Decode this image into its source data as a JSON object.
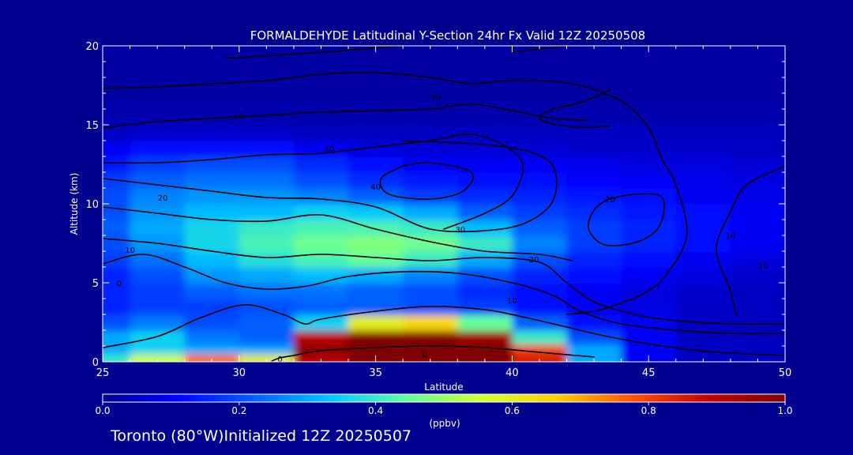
{
  "chart_data": {
    "type": "heatmap",
    "title": "FORMALDEHYDE Latitudinal Y-Section 24hr  Fx Valid 12Z 20250508",
    "xlabel": "Latitude",
    "ylabel": "Altitude (km)",
    "xlim": [
      25,
      50
    ],
    "ylim": [
      0,
      20
    ],
    "x_ticks": [
      25,
      30,
      35,
      40,
      45,
      50
    ],
    "y_ticks": [
      0,
      5,
      10,
      15,
      20
    ],
    "colorbar": {
      "label": "(ppbv)",
      "range": [
        0.0,
        1.0
      ],
      "ticks": [
        "0.0",
        "0.2",
        "0.4",
        "0.6",
        "0.8",
        "1.0"
      ],
      "colors": [
        "#00008f",
        "#0000ff",
        "#0060ff",
        "#00c8ff",
        "#60ffa0",
        "#d0ff30",
        "#ffd000",
        "#ff5000",
        "#c00000",
        "#800000"
      ]
    },
    "x": [
      25,
      27,
      29,
      31,
      33,
      35,
      37,
      39,
      41,
      43,
      45,
      47,
      49,
      50
    ],
    "y": [
      0.25,
      0.75,
      1.5,
      2.5,
      3.5,
      4.5,
      5.5,
      6.5,
      7.5,
      8.5,
      9.5,
      10.5,
      11.5,
      12.5,
      13.5,
      14.5,
      15.5,
      17.5,
      20
    ],
    "z": [
      [
        0.4,
        0.55,
        0.75,
        0.6,
        0.9,
        1.0,
        1.0,
        1.0,
        0.85,
        0.3,
        0.1,
        0.05,
        0.05,
        0.05
      ],
      [
        0.3,
        0.35,
        0.3,
        0.3,
        1.0,
        1.0,
        1.0,
        1.0,
        0.8,
        0.3,
        0.1,
        0.05,
        0.05,
        0.05
      ],
      [
        0.3,
        0.35,
        0.25,
        0.22,
        0.9,
        1.0,
        1.0,
        0.95,
        0.4,
        0.2,
        0.1,
        0.05,
        0.05,
        0.05
      ],
      [
        0.2,
        0.25,
        0.2,
        0.22,
        0.35,
        0.6,
        0.65,
        0.45,
        0.22,
        0.12,
        0.1,
        0.05,
        0.05,
        0.05
      ],
      [
        0.15,
        0.18,
        0.18,
        0.2,
        0.22,
        0.22,
        0.2,
        0.18,
        0.12,
        0.1,
        0.08,
        0.06,
        0.05,
        0.05
      ],
      [
        0.15,
        0.18,
        0.22,
        0.24,
        0.24,
        0.22,
        0.2,
        0.16,
        0.12,
        0.1,
        0.08,
        0.06,
        0.05,
        0.05
      ],
      [
        0.15,
        0.2,
        0.28,
        0.3,
        0.32,
        0.3,
        0.26,
        0.2,
        0.15,
        0.12,
        0.1,
        0.08,
        0.06,
        0.06
      ],
      [
        0.18,
        0.24,
        0.32,
        0.38,
        0.42,
        0.45,
        0.4,
        0.3,
        0.2,
        0.15,
        0.12,
        0.1,
        0.08,
        0.08
      ],
      [
        0.2,
        0.28,
        0.36,
        0.42,
        0.46,
        0.48,
        0.46,
        0.4,
        0.26,
        0.18,
        0.15,
        0.12,
        0.1,
        0.1
      ],
      [
        0.22,
        0.3,
        0.36,
        0.4,
        0.42,
        0.42,
        0.4,
        0.32,
        0.22,
        0.18,
        0.15,
        0.12,
        0.1,
        0.1
      ],
      [
        0.2,
        0.28,
        0.32,
        0.32,
        0.35,
        0.34,
        0.3,
        0.22,
        0.18,
        0.16,
        0.14,
        0.12,
        0.1,
        0.1
      ],
      [
        0.2,
        0.26,
        0.28,
        0.28,
        0.26,
        0.22,
        0.18,
        0.16,
        0.15,
        0.14,
        0.12,
        0.1,
        0.09,
        0.09
      ],
      [
        0.18,
        0.22,
        0.24,
        0.24,
        0.2,
        0.16,
        0.14,
        0.13,
        0.12,
        0.11,
        0.1,
        0.09,
        0.08,
        0.08
      ],
      [
        0.14,
        0.18,
        0.2,
        0.2,
        0.16,
        0.12,
        0.1,
        0.1,
        0.1,
        0.09,
        0.08,
        0.08,
        0.07,
        0.07
      ],
      [
        0.1,
        0.12,
        0.12,
        0.12,
        0.1,
        0.08,
        0.07,
        0.07,
        0.07,
        0.06,
        0.06,
        0.06,
        0.05,
        0.05
      ],
      [
        0.05,
        0.06,
        0.06,
        0.06,
        0.05,
        0.05,
        0.05,
        0.05,
        0.05,
        0.05,
        0.05,
        0.05,
        0.05,
        0.05
      ],
      [
        0.03,
        0.03,
        0.03,
        0.03,
        0.03,
        0.03,
        0.03,
        0.03,
        0.03,
        0.03,
        0.03,
        0.03,
        0.03,
        0.03
      ],
      [
        0.02,
        0.02,
        0.02,
        0.02,
        0.02,
        0.02,
        0.02,
        0.02,
        0.02,
        0.02,
        0.02,
        0.02,
        0.02,
        0.02
      ],
      [
        0.02,
        0.02,
        0.02,
        0.02,
        0.02,
        0.02,
        0.02,
        0.02,
        0.02,
        0.02,
        0.02,
        0.02,
        0.02,
        0.02
      ]
    ],
    "contours": [
      {
        "label": "0",
        "points": [
          [
            25,
            0.9
          ],
          [
            27,
            1.6
          ],
          [
            28.6,
            2.8
          ],
          [
            30.2,
            3.6
          ],
          [
            31.6,
            3.0
          ],
          [
            32.4,
            2.4
          ],
          [
            33,
            2.7
          ],
          [
            35,
            3.2
          ],
          [
            37,
            3.5
          ],
          [
            39,
            3.3
          ],
          [
            40.5,
            2.8
          ],
          [
            42,
            2.2
          ],
          [
            43.5,
            1.6
          ],
          [
            45.5,
            1.0
          ],
          [
            47.5,
            0.6
          ],
          [
            50,
            0.4
          ]
        ]
      },
      {
        "label": "0",
        "points": [
          [
            31.2,
            0.05
          ],
          [
            31.5,
            0.25
          ],
          [
            32,
            0.4
          ],
          [
            33,
            0.7
          ],
          [
            35,
            0.9
          ],
          [
            37,
            1.0
          ],
          [
            39,
            0.9
          ],
          [
            41,
            0.6
          ],
          [
            43,
            0.3
          ]
        ]
      },
      {
        "label": "10",
        "points": [
          [
            25,
            6.2
          ],
          [
            26.5,
            6.8
          ],
          [
            28,
            6.0
          ],
          [
            29.5,
            5.0
          ],
          [
            31,
            4.6
          ],
          [
            32.5,
            4.8
          ],
          [
            34,
            5.4
          ],
          [
            36,
            5.7
          ],
          [
            38,
            5.6
          ],
          [
            40,
            5.0
          ],
          [
            41.5,
            4.2
          ],
          [
            42.5,
            3.2
          ],
          [
            44,
            2.4
          ],
          [
            46,
            2.0
          ],
          [
            48,
            1.8
          ],
          [
            50,
            1.8
          ]
        ]
      },
      {
        "label": "20",
        "points": [
          [
            25,
            7.8
          ],
          [
            27,
            7.5
          ],
          [
            29,
            7.0
          ],
          [
            31,
            6.6
          ],
          [
            33,
            6.8
          ],
          [
            35,
            6.6
          ],
          [
            37,
            6.4
          ],
          [
            39,
            6.6
          ],
          [
            41,
            6.3
          ],
          [
            42,
            5.0
          ],
          [
            43,
            3.8
          ],
          [
            44.5,
            3.0
          ],
          [
            46,
            2.6
          ],
          [
            48,
            2.4
          ],
          [
            50,
            2.4
          ]
        ]
      },
      {
        "label": "10",
        "points": [
          [
            25,
            9.8
          ],
          [
            27,
            9.4
          ],
          [
            29,
            9.0
          ],
          [
            31,
            8.9
          ],
          [
            33,
            9.3
          ],
          [
            35,
            8.4
          ],
          [
            37,
            7.6
          ],
          [
            39,
            7.0
          ],
          [
            41,
            6.8
          ],
          [
            42.2,
            6.4
          ]
        ]
      },
      {
        "label": "20",
        "points": [
          [
            25,
            11.6
          ],
          [
            27,
            11.2
          ],
          [
            29,
            10.8
          ],
          [
            31,
            10.4
          ],
          [
            33,
            10.3
          ],
          [
            35,
            9.8
          ],
          [
            37,
            8.4
          ],
          [
            39,
            8.3
          ],
          [
            40.5,
            8.8
          ],
          [
            41.5,
            10.2
          ],
          [
            41.5,
            12.4
          ],
          [
            40.4,
            13.4
          ],
          [
            38.5,
            13.8
          ],
          [
            36,
            14.0
          ]
        ]
      },
      {
        "label": "30",
        "points": [
          [
            25,
            12.6
          ],
          [
            27,
            12.6
          ],
          [
            29,
            12.8
          ],
          [
            31,
            13.1
          ],
          [
            33,
            13.2
          ],
          [
            35,
            13.6
          ],
          [
            37,
            14.0
          ],
          [
            38.5,
            14.4
          ],
          [
            39.8,
            13.6
          ],
          [
            40.4,
            12.4
          ],
          [
            40.0,
            10.5
          ],
          [
            39,
            9.4
          ],
          [
            37.5,
            8.4
          ]
        ]
      },
      {
        "label": "40",
        "points": [
          [
            36,
            12.4
          ],
          [
            37,
            12.6
          ],
          [
            38.5,
            12.0
          ],
          [
            38.2,
            10.8
          ],
          [
            37,
            10.3
          ],
          [
            35.5,
            10.6
          ],
          [
            35.2,
            11.6
          ],
          [
            36,
            12.4
          ]
        ]
      },
      {
        "label": "30",
        "points": [
          [
            25,
            14.8
          ],
          [
            27,
            15.2
          ],
          [
            29,
            15.4
          ],
          [
            31,
            15.6
          ],
          [
            33,
            15.8
          ],
          [
            35,
            15.9
          ],
          [
            37,
            16.0
          ],
          [
            38.5,
            16.3
          ],
          [
            40,
            15.9
          ],
          [
            41.5,
            15.4
          ],
          [
            42.8,
            15.3
          ]
        ]
      },
      {
        "label": "20",
        "points": [
          [
            43.5,
            10.3
          ],
          [
            44.5,
            10.6
          ],
          [
            45.5,
            10.4
          ],
          [
            45.4,
            8.6
          ],
          [
            44.6,
            7.6
          ],
          [
            43.4,
            7.4
          ],
          [
            42.8,
            8.4
          ],
          [
            43.0,
            9.6
          ],
          [
            43.5,
            10.3
          ]
        ]
      },
      {
        "label": "10",
        "points": [
          [
            25,
            17.3
          ],
          [
            27,
            17.4
          ],
          [
            29,
            17.6
          ],
          [
            31,
            17.8
          ],
          [
            33,
            18.2
          ],
          [
            35,
            18.3
          ],
          [
            37,
            18.0
          ],
          [
            38.5,
            17.6
          ],
          [
            40,
            17.8
          ],
          [
            42.2,
            17.6
          ],
          [
            44,
            16.5
          ],
          [
            45,
            14.8
          ],
          [
            45.5,
            12.8
          ],
          [
            46.0,
            11.2
          ],
          [
            46.4,
            8.0
          ],
          [
            45.6,
            5.4
          ],
          [
            44.8,
            4.3
          ],
          [
            43.8,
            3.6
          ],
          [
            43,
            3.2
          ],
          [
            42,
            3.0
          ]
        ]
      },
      {
        "label": "10",
        "points": [
          [
            43.6,
            17.2
          ],
          [
            42.5,
            16.4
          ],
          [
            41.5,
            16.0
          ],
          [
            41.0,
            15.4
          ],
          [
            42.0,
            14.9
          ],
          [
            43.6,
            14.9
          ]
        ]
      },
      {
        "label": "10",
        "points": [
          [
            48.2,
            3.0
          ],
          [
            48.0,
            4.5
          ],
          [
            47.6,
            6.2
          ],
          [
            47.5,
            7.5
          ],
          [
            48.0,
            9.5
          ],
          [
            48.6,
            11.2
          ],
          [
            50,
            12.4
          ]
        ]
      },
      {
        "label": "10",
        "points": [
          [
            29.5,
            19.2
          ],
          [
            33,
            19.6
          ],
          [
            36,
            20.0
          ]
        ]
      },
      {
        "label": "10",
        "points": [
          [
            40,
            19.6
          ],
          [
            42,
            20.0
          ]
        ]
      }
    ],
    "contour_labels": [
      {
        "text": "0",
        "x": 31.5,
        "y": 0.2
      },
      {
        "text": "0",
        "x": 36.8,
        "y": 0.5
      },
      {
        "text": "10",
        "x": 40.0,
        "y": 3.9
      },
      {
        "text": "20",
        "x": 40.8,
        "y": 6.5
      },
      {
        "text": "30",
        "x": 38.1,
        "y": 8.4
      },
      {
        "text": "10",
        "x": 26.0,
        "y": 7.1
      },
      {
        "text": "20",
        "x": 27.2,
        "y": 10.4
      },
      {
        "text": "30",
        "x": 33.3,
        "y": 13.5
      },
      {
        "text": "40",
        "x": 35.0,
        "y": 11.1
      },
      {
        "text": "20",
        "x": 43.6,
        "y": 10.3
      },
      {
        "text": "10",
        "x": 49.2,
        "y": 6.1
      },
      {
        "text": "10",
        "x": 30.0,
        "y": 15.6
      },
      {
        "text": "10",
        "x": 37.2,
        "y": 16.8
      },
      {
        "text": "10",
        "x": 48.0,
        "y": 8.0
      },
      {
        "text": "0",
        "x": 25.6,
        "y": 5.0
      }
    ]
  },
  "footer": {
    "location_text": "Toronto (80°W)Initialized 12Z 20250507"
  }
}
